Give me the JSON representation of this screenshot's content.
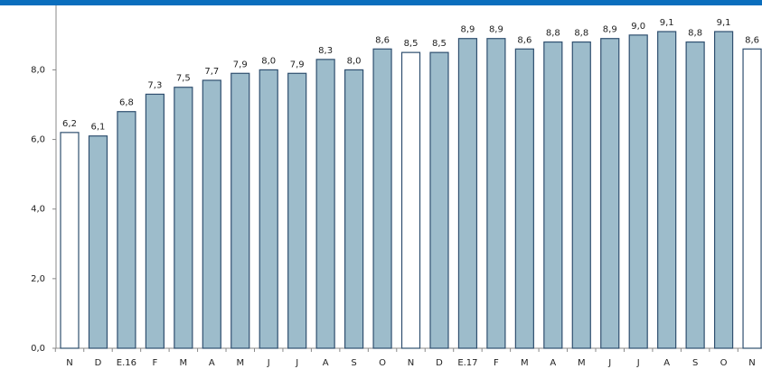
{
  "chart_data": {
    "type": "bar",
    "categories": [
      "N",
      "D",
      "E.16",
      "F",
      "M",
      "A",
      "M",
      "J",
      "J",
      "A",
      "S",
      "O",
      "N",
      "D",
      "E.17",
      "F",
      "M",
      "A",
      "M",
      "J",
      "J",
      "A",
      "S",
      "O",
      "N"
    ],
    "values": [
      6.2,
      6.1,
      6.8,
      7.3,
      7.5,
      7.7,
      7.9,
      8.0,
      7.9,
      8.3,
      8.0,
      8.6,
      8.5,
      8.5,
      8.9,
      8.9,
      8.6,
      8.8,
      8.8,
      8.9,
      9.0,
      9.1,
      8.8,
      9.1,
      8.6
    ],
    "value_labels": [
      "6,2",
      "6,1",
      "6,8",
      "7,3",
      "7,5",
      "7,7",
      "7,9",
      "8,0",
      "7,9",
      "8,3",
      "8,0",
      "8,6",
      "8,5",
      "8,5",
      "8,9",
      "8,9",
      "8,6",
      "8,8",
      "8,8",
      "8,9",
      "9,0",
      "9,1",
      "8,8",
      "9,1",
      "8,6"
    ],
    "colors": [
      "#ffffff",
      "#9dbccb",
      "#9dbccb",
      "#9dbccb",
      "#9dbccb",
      "#9dbccb",
      "#9dbccb",
      "#9dbccb",
      "#9dbccb",
      "#9dbccb",
      "#9dbccb",
      "#9dbccb",
      "#ffffff",
      "#9dbccb",
      "#9dbccb",
      "#9dbccb",
      "#9dbccb",
      "#9dbccb",
      "#9dbccb",
      "#9dbccb",
      "#9dbccb",
      "#9dbccb",
      "#9dbccb",
      "#9dbccb",
      "#ffffff"
    ],
    "edge_color": "#2f4f6f",
    "ylim": [
      0,
      9.8
    ],
    "yticks": [
      {
        "value": 0,
        "label": "0,0"
      },
      {
        "value": 2,
        "label": "2,0"
      },
      {
        "value": 4,
        "label": "4,0"
      },
      {
        "value": 6,
        "label": "6,0"
      },
      {
        "value": 8,
        "label": "8,0"
      }
    ],
    "grid": false
  }
}
